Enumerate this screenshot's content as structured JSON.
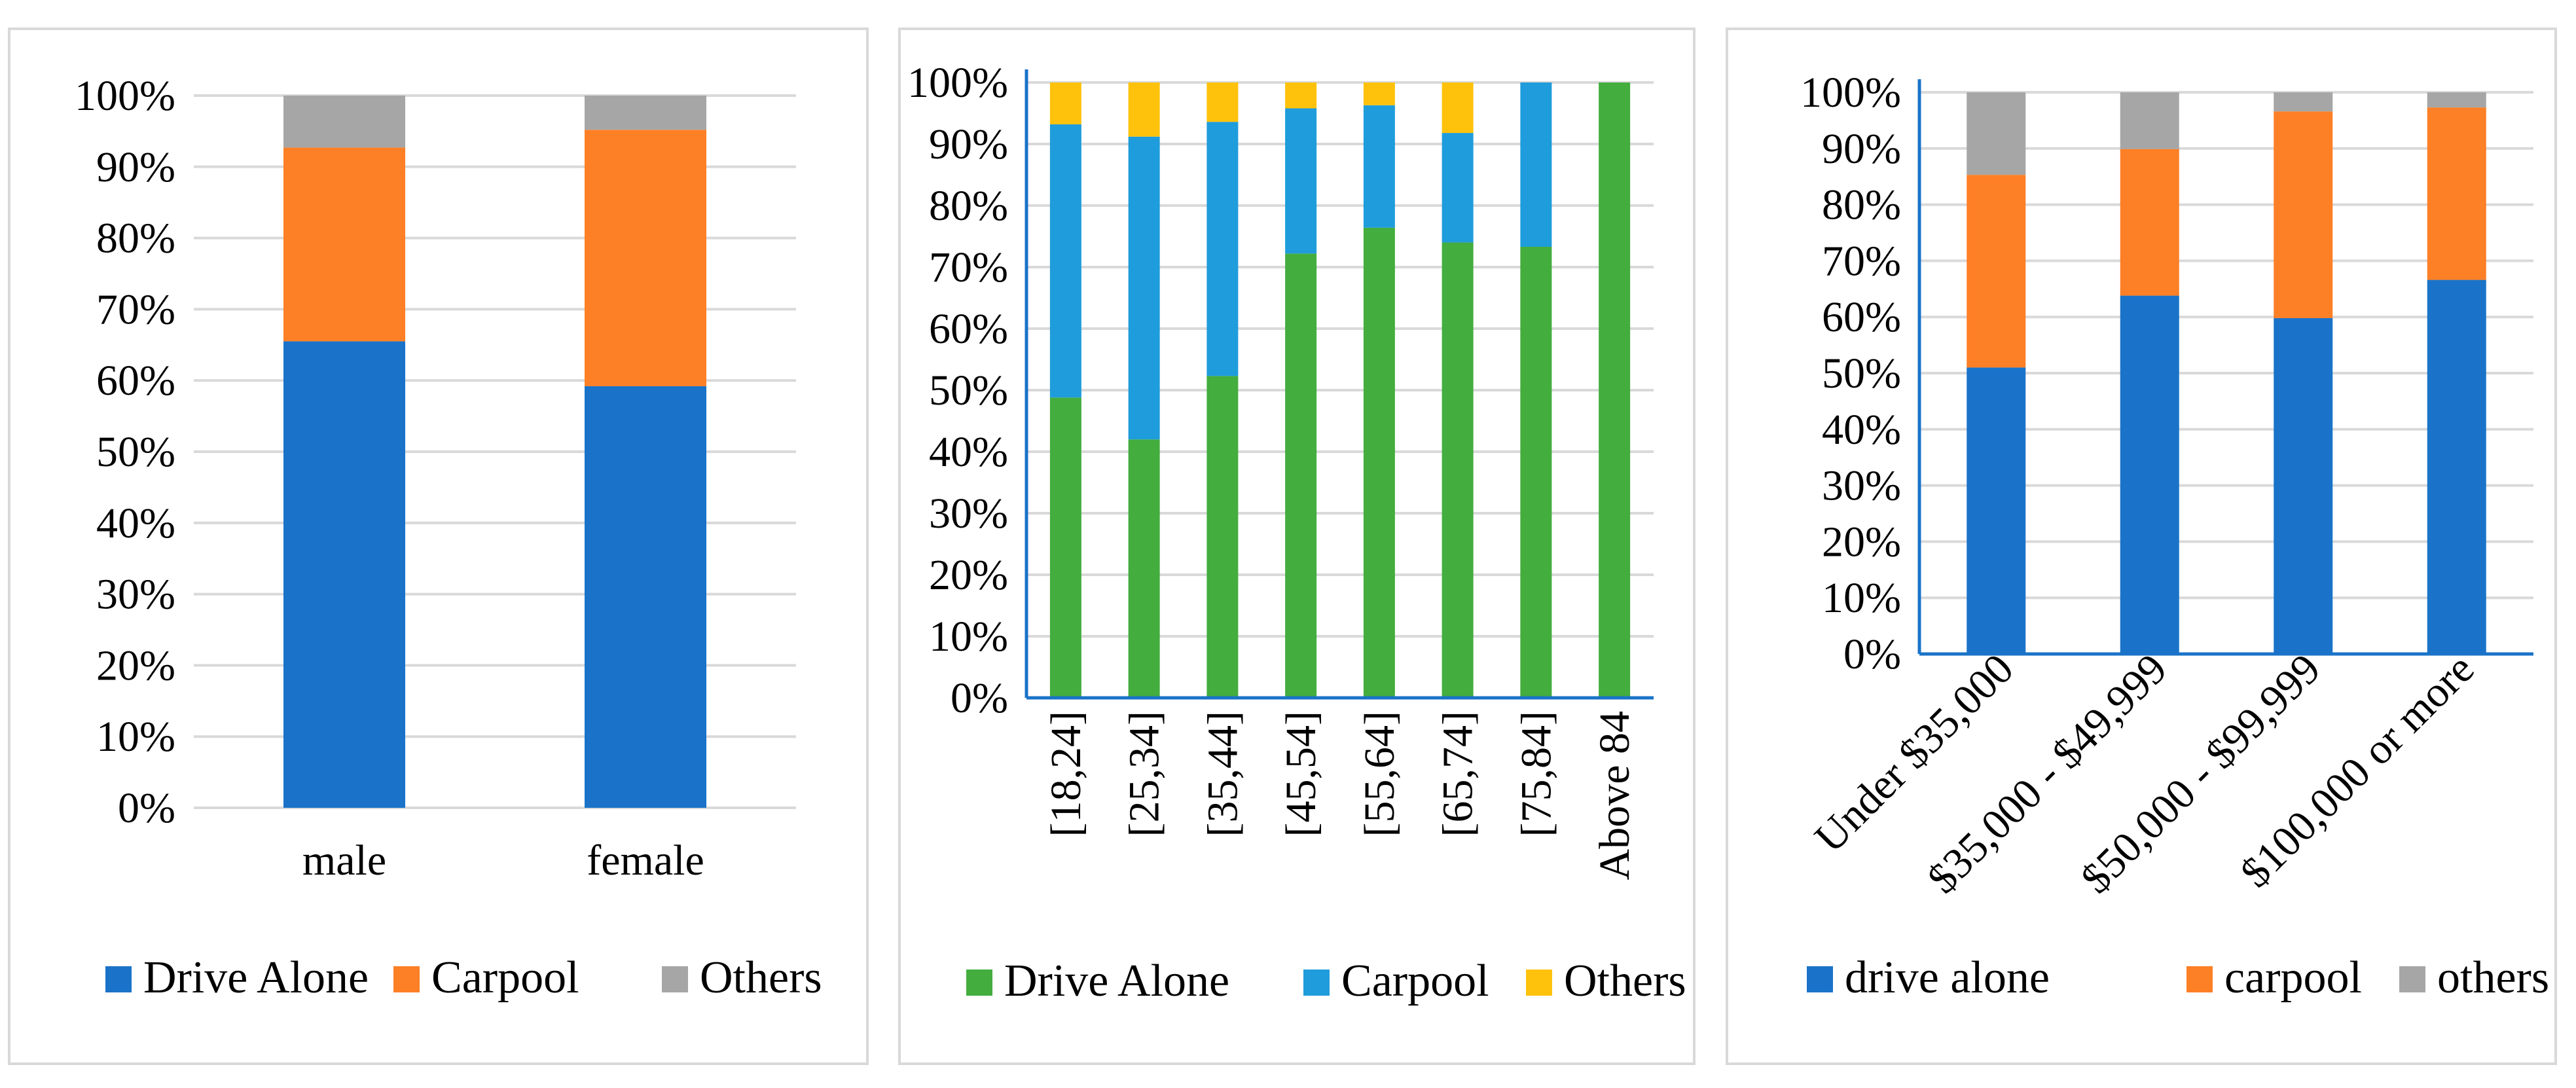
{
  "chart_data": [
    {
      "type": "bar",
      "stacked": true,
      "title": "",
      "xlabel": "",
      "ylabel": "",
      "ylim": [
        0,
        100
      ],
      "yticks": [
        "0%",
        "10%",
        "20%",
        "30%",
        "40%",
        "50%",
        "60%",
        "70%",
        "80%",
        "90%",
        "100%"
      ],
      "categories": [
        "male",
        "female"
      ],
      "series": [
        {
          "name": "Drive Alone",
          "color": "#1a73c8",
          "values": [
            65.5,
            59.2
          ]
        },
        {
          "name": "Carpool",
          "color": "#fd7f26",
          "values": [
            27.2,
            36.0
          ]
        },
        {
          "name": "Others",
          "color": "#a6a6a6",
          "values": [
            7.3,
            4.8
          ]
        }
      ],
      "legend": "bottom",
      "grid": true
    },
    {
      "type": "bar",
      "stacked": true,
      "title": "",
      "xlabel": "",
      "ylabel": "",
      "ylim": [
        0,
        100
      ],
      "yticks": [
        "0%",
        "10%",
        "20%",
        "30%",
        "40%",
        "50%",
        "60%",
        "70%",
        "80%",
        "90%",
        "100%"
      ],
      "categories": [
        "[18,24]",
        "[25,34]",
        "[35,44]",
        "[45,54]",
        "[55,64]",
        "[65,74]",
        "[75,84]",
        "Above 84"
      ],
      "series": [
        {
          "name": "Drive Alone",
          "color": "#43ad3e",
          "values": [
            48.8,
            42.0,
            52.3,
            72.2,
            76.4,
            74.0,
            73.3,
            100
          ]
        },
        {
          "name": "Carpool",
          "color": "#1f9cdb",
          "values": [
            44.4,
            49.2,
            41.3,
            23.6,
            19.9,
            17.8,
            26.7,
            0
          ]
        },
        {
          "name": "Others",
          "color": "#fec20c",
          "values": [
            6.8,
            8.8,
            6.4,
            4.2,
            3.7,
            8.2,
            0,
            0
          ]
        }
      ],
      "legend": "bottom",
      "grid": true
    },
    {
      "type": "bar",
      "stacked": true,
      "title": "",
      "xlabel": "",
      "ylabel": "",
      "ylim": [
        0,
        100
      ],
      "yticks": [
        "0%",
        "10%",
        "20%",
        "30%",
        "40%",
        "50%",
        "60%",
        "70%",
        "80%",
        "90%",
        "100%"
      ],
      "categories": [
        "Under $35,000",
        "$35,000 - $49,999",
        "$50,000 - $99,999",
        "$100,000 or more"
      ],
      "series": [
        {
          "name": "drive alone",
          "color": "#1a73c8",
          "values": [
            51.0,
            63.8,
            59.8,
            66.6
          ]
        },
        {
          "name": "carpool",
          "color": "#fd7f26",
          "values": [
            34.3,
            26.1,
            36.8,
            30.7
          ]
        },
        {
          "name": "others",
          "color": "#a6a6a6",
          "values": [
            14.7,
            10.1,
            3.4,
            2.7
          ]
        }
      ],
      "legend": "bottom",
      "grid": true
    }
  ]
}
